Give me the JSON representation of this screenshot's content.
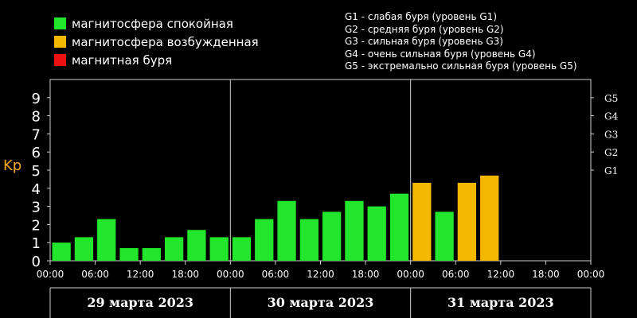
{
  "legend": {
    "items": [
      {
        "label": "магнитосфера спокойная",
        "color": "#22e62c"
      },
      {
        "label": "магнитосфера возбужденная",
        "color": "#f5b800"
      },
      {
        "label": "магнитная буря",
        "color": "#ee1111"
      }
    ]
  },
  "storm_legend": [
    "G1 - слабая буря (уровень G1)",
    "G2 - средняя буря (уровень G2)",
    "G3 - сильная буря (уровень G3)",
    "G4 - очень сильная буря (уровень G4)",
    "G5 - экстремально сильная буря (уровень G5)"
  ],
  "chart_data": {
    "type": "bar",
    "ylabel": "Kp",
    "ylim": [
      0,
      10
    ],
    "yticks": [
      0,
      1,
      2,
      3,
      4,
      5,
      6,
      7,
      8,
      9
    ],
    "right_ticks": [
      {
        "label": "G1",
        "value": 5
      },
      {
        "label": "G2",
        "value": 6
      },
      {
        "label": "G3",
        "value": 7
      },
      {
        "label": "G4",
        "value": 8
      },
      {
        "label": "G5",
        "value": 9
      }
    ],
    "xtick_labels": [
      "00:00",
      "06:00",
      "12:00",
      "18:00",
      "00:00",
      "06:00",
      "12:00",
      "18:00",
      "00:00",
      "06:00",
      "12:00",
      "18:00",
      "00:00"
    ],
    "days": [
      "29 марта 2023",
      "30 марта 2023",
      "31 марта 2023"
    ],
    "slots_per_day": 8,
    "values": [
      1.0,
      1.3,
      2.3,
      0.7,
      0.7,
      1.3,
      1.7,
      1.3,
      1.3,
      2.3,
      3.3,
      2.3,
      2.7,
      3.3,
      3.0,
      3.7,
      4.3,
      2.7,
      4.3,
      4.7
    ],
    "colors": [
      "#22e62c",
      "#22e62c",
      "#22e62c",
      "#22e62c",
      "#22e62c",
      "#22e62c",
      "#22e62c",
      "#22e62c",
      "#22e62c",
      "#22e62c",
      "#22e62c",
      "#22e62c",
      "#22e62c",
      "#22e62c",
      "#22e62c",
      "#22e62c",
      "#f5b800",
      "#22e62c",
      "#f5b800",
      "#f5b800"
    ],
    "grid": "day-separators"
  }
}
